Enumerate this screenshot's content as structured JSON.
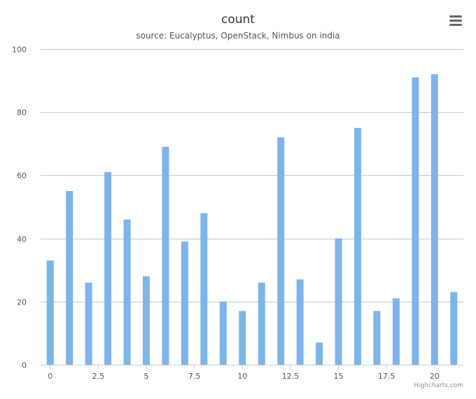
{
  "chart_data": {
    "type": "bar",
    "title": "count",
    "subtitle": "source: Eucalyptus, OpenStack, Nimbus on india",
    "xlabel": "",
    "ylabel": "",
    "x": [
      0,
      1,
      2,
      3,
      4,
      5,
      6,
      7,
      8,
      9,
      10,
      11,
      12,
      13,
      14,
      15,
      16,
      17,
      18,
      19,
      20,
      21
    ],
    "values": [
      33,
      55,
      26,
      61,
      46,
      28,
      69,
      39,
      48,
      20,
      17,
      26,
      72,
      27,
      7,
      40,
      75,
      17,
      21,
      91,
      92,
      23
    ],
    "xlim": [
      -0.5,
      21.5
    ],
    "ylim": [
      0,
      100
    ],
    "x_ticks": [
      0,
      2.5,
      5,
      7.5,
      10,
      12.5,
      15,
      17.5,
      20
    ],
    "x_tick_labels": [
      "0",
      "2.5",
      "5",
      "7.5",
      "10",
      "12.5",
      "15",
      "17.5",
      "20"
    ],
    "y_ticks": [
      0,
      20,
      40,
      60,
      80,
      100
    ],
    "y_tick_labels": [
      "0",
      "20",
      "40",
      "60",
      "80",
      "100"
    ],
    "grid": true,
    "legend": "none",
    "bar_color": "#7cb5ec"
  },
  "menu_icon": "hamburger-menu-icon",
  "credits": "Highcharts.com"
}
